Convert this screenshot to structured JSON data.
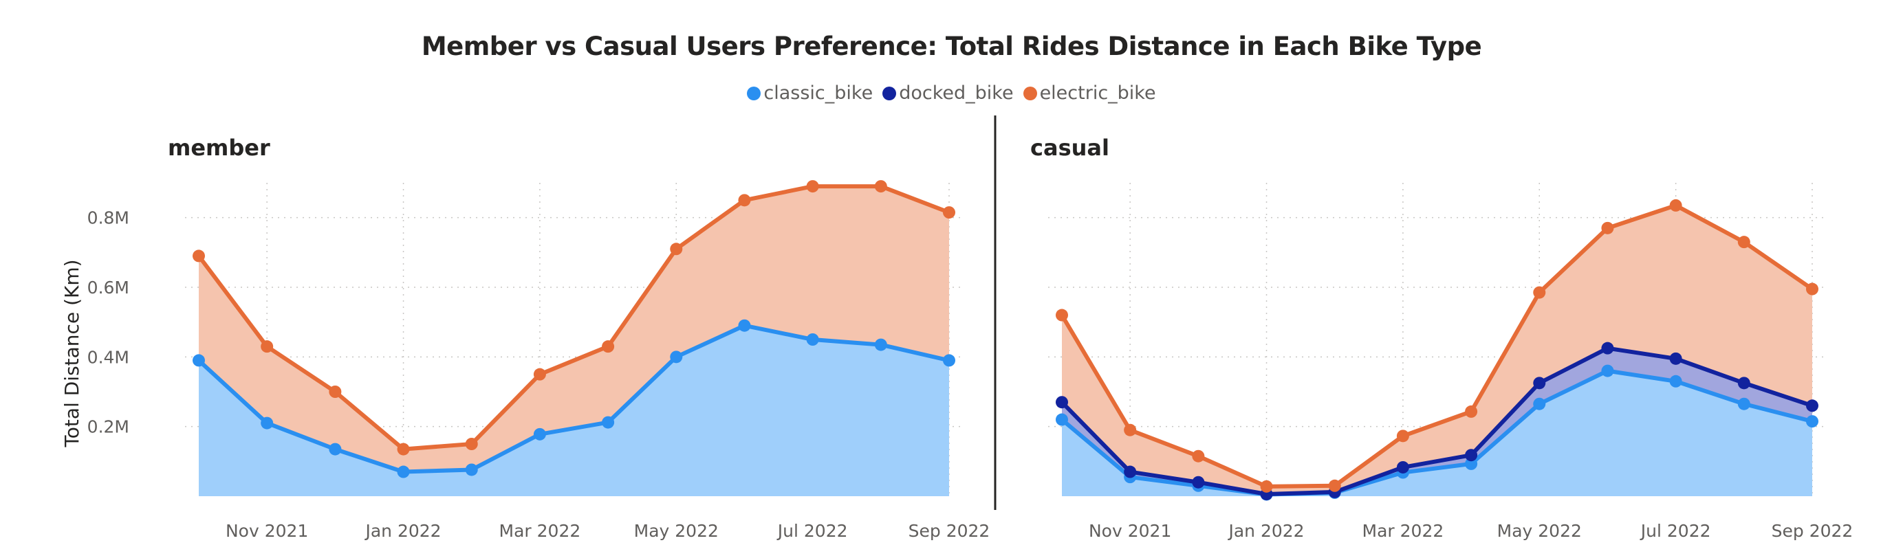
{
  "title": "Member vs Casual Users Preference: Total Rides Distance in Each Bike Type",
  "colors": {
    "classic_bike_line": "#2A8FF0",
    "classic_bike_fill": "#9FCFFB",
    "docked_bike_line": "#12239E",
    "docked_bike_fill": "#A1A6DE",
    "electric_bike_line": "#E66C37",
    "electric_bike_fill": "#F5C4AE"
  },
  "legend": [
    {
      "label": "classic_bike",
      "color": "#2A8FF0"
    },
    {
      "label": "docked_bike",
      "color": "#12239E"
    },
    {
      "label": "electric_bike",
      "color": "#E66C37"
    }
  ],
  "chart_data": [
    {
      "type": "area",
      "stacked": true,
      "panel": "member",
      "ylabel": "Total Distance (Km)",
      "ylim": [
        0,
        0.9
      ],
      "yunit": "M",
      "yticks": [
        0.2,
        0.4,
        0.6,
        0.8
      ],
      "ytick_labels": [
        "0.2M",
        "0.4M",
        "0.6M",
        "0.8M"
      ],
      "grid": true,
      "x": [
        "Oct 2021",
        "Nov 2021",
        "Dec 2021",
        "Jan 2022",
        "Feb 2022",
        "Mar 2022",
        "Apr 2022",
        "May 2022",
        "Jun 2022",
        "Jul 2022",
        "Aug 2022",
        "Sep 2022"
      ],
      "xtick_labels": [
        "Nov 2021",
        "Jan 2022",
        "Mar 2022",
        "May 2022",
        "Jul 2022",
        "Sep 2022"
      ],
      "series": [
        {
          "name": "classic_bike",
          "values": [
            0.39,
            0.21,
            0.135,
            0.07,
            0.076,
            0.178,
            0.212,
            0.4,
            0.49,
            0.45,
            0.435,
            0.39
          ]
        },
        {
          "name": "docked_bike",
          "values": [
            0,
            0,
            0,
            0,
            0,
            0,
            0,
            0,
            0,
            0,
            0,
            0
          ]
        },
        {
          "name": "electric_bike",
          "values": [
            0.3,
            0.22,
            0.165,
            0.065,
            0.074,
            0.172,
            0.218,
            0.31,
            0.36,
            0.44,
            0.455,
            0.425
          ]
        }
      ]
    },
    {
      "type": "area",
      "stacked": true,
      "panel": "casual",
      "ylim": [
        0,
        0.9
      ],
      "yunit": "M",
      "grid": true,
      "x": [
        "Oct 2021",
        "Nov 2021",
        "Dec 2021",
        "Jan 2022",
        "Feb 2022",
        "Mar 2022",
        "Apr 2022",
        "May 2022",
        "Jun 2022",
        "Jul 2022",
        "Aug 2022",
        "Sep 2022"
      ],
      "xtick_labels": [
        "Nov 2021",
        "Jan 2022",
        "Mar 2022",
        "May 2022",
        "Jul 2022",
        "Sep 2022"
      ],
      "series": [
        {
          "name": "classic_bike",
          "values": [
            0.22,
            0.055,
            0.03,
            0.005,
            0.01,
            0.068,
            0.093,
            0.265,
            0.36,
            0.33,
            0.265,
            0.215
          ]
        },
        {
          "name": "docked_bike",
          "values": [
            0.05,
            0.015,
            0.01,
            0.001,
            0.002,
            0.015,
            0.025,
            0.06,
            0.065,
            0.065,
            0.06,
            0.045
          ]
        },
        {
          "name": "electric_bike",
          "values": [
            0.25,
            0.12,
            0.075,
            0.022,
            0.018,
            0.09,
            0.125,
            0.26,
            0.345,
            0.44,
            0.405,
            0.335
          ]
        }
      ]
    }
  ]
}
